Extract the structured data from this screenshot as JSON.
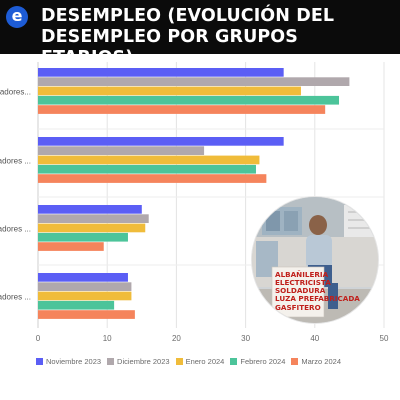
{
  "header": {
    "logo_letter": "e",
    "title": "DESEMPLEO (EVOLUCIÓN DEL DESEMPLEO POR GRUPOS ETARIOS)"
  },
  "colors": {
    "header_bg": "#0b0b0b",
    "logo_bg": "#1d5cd6"
  },
  "photo": {
    "sign_lines": [
      "ALBAÑILERIA",
      "ELECTRICISTA",
      "SOLDADURA",
      "LUZA PREFABRICADA",
      "GASFITERO"
    ]
  },
  "chart_data": {
    "type": "bar",
    "orientation": "horizontal",
    "title": "",
    "xlabel": "",
    "ylabel": "",
    "xlim": [
      0,
      50
    ],
    "xticks": [
      0,
      10,
      20,
      30,
      40,
      50
    ],
    "grid": true,
    "legend_position": "bottom",
    "categories": [
      "adores...",
      "adores ...",
      "adores ...",
      "adores ..."
    ],
    "series": [
      {
        "name": "Noviembre 2023",
        "color": "#5b5ef5",
        "values": [
          35.5,
          35.5,
          15,
          13
        ]
      },
      {
        "name": "Diciembre 2023",
        "color": "#b0a8ac",
        "values": [
          45,
          24,
          16,
          13.5
        ]
      },
      {
        "name": "Enero 2024",
        "color": "#f0bc3a",
        "values": [
          38,
          32,
          15.5,
          13.5
        ]
      },
      {
        "name": "Febrero 2024",
        "color": "#4cc49a",
        "values": [
          43.5,
          31.5,
          13,
          11
        ]
      },
      {
        "name": "Marzo 2024",
        "color": "#f5845c",
        "values": [
          41.5,
          33,
          9.5,
          14
        ]
      }
    ]
  }
}
